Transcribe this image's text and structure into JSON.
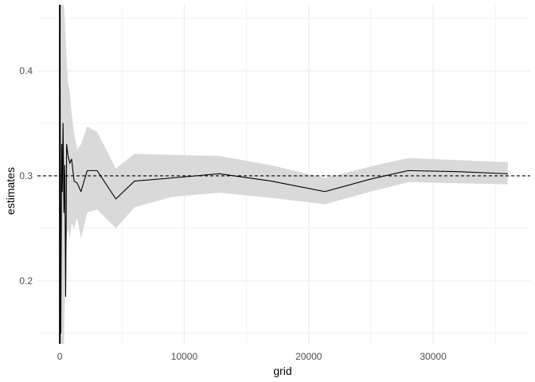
{
  "chart_data": {
    "type": "line",
    "title": "",
    "xlabel": "grid",
    "ylabel": "estimates",
    "xlim": [
      -1800,
      37800
    ],
    "ylim": [
      0.14,
      0.463
    ],
    "x_ticks": [
      0,
      10000,
      20000,
      30000
    ],
    "x_tick_labels": [
      "0",
      "10000",
      "20000",
      "30000"
    ],
    "y_ticks": [
      0.2,
      0.3,
      0.4
    ],
    "y_tick_labels": [
      "0.2",
      "0.3",
      "0.4"
    ],
    "grid": true,
    "reference_line": {
      "y": 0.3,
      "style": "dashed"
    },
    "series": [
      {
        "x": [
          0,
          80,
          150,
          200,
          260,
          330,
          400,
          470,
          550,
          650,
          800,
          950,
          1150,
          1400,
          1700,
          2200,
          3000,
          4500,
          6000,
          9000,
          12800,
          17000,
          21300,
          25000,
          28000,
          32000,
          36000
        ],
        "y": [
          0.463,
          0.15,
          0.33,
          0.285,
          0.35,
          0.265,
          0.31,
          0.185,
          0.33,
          0.32,
          0.312,
          0.316,
          0.295,
          0.293,
          0.285,
          0.305,
          0.305,
          0.278,
          0.295,
          0.298,
          0.302,
          0.295,
          0.285,
          0.297,
          0.305,
          0.304,
          0.302
        ],
        "lower": [
          0.14,
          0.14,
          0.14,
          0.14,
          0.14,
          0.14,
          0.18,
          0.2,
          0.24,
          0.25,
          0.24,
          0.255,
          0.25,
          0.26,
          0.24,
          0.265,
          0.268,
          0.25,
          0.27,
          0.28,
          0.284,
          0.279,
          0.273,
          0.285,
          0.294,
          0.293,
          0.292
        ],
        "upper": [
          0.463,
          0.463,
          0.463,
          0.463,
          0.463,
          0.463,
          0.45,
          0.43,
          0.41,
          0.39,
          0.38,
          0.36,
          0.34,
          0.325,
          0.33,
          0.347,
          0.342,
          0.307,
          0.321,
          0.32,
          0.319,
          0.31,
          0.298,
          0.309,
          0.317,
          0.315,
          0.313
        ]
      }
    ]
  },
  "colors": {
    "band": "#d9d9d9",
    "line": "#000000",
    "grid": "#ebebeb",
    "tick_text": "#4d4d4d"
  }
}
